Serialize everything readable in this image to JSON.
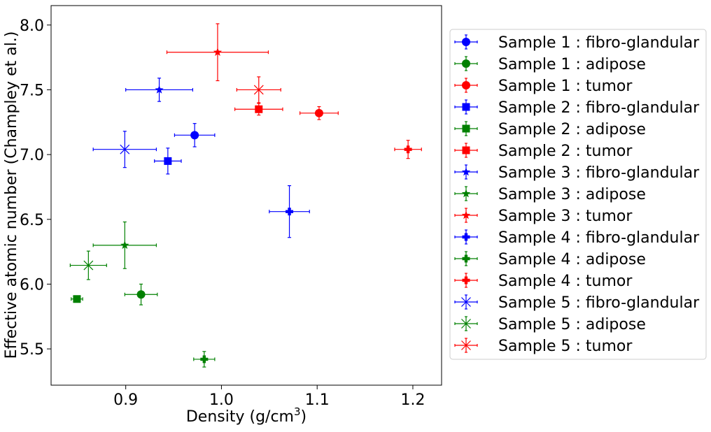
{
  "chart_data": {
    "type": "scatter",
    "xlabel": "Density (g/cm",
    "xlabel_sup": "3",
    "xlabel_end": ")",
    "ylabel": "Effective atomic number (Champley et al.)",
    "xlim": [
      0.822,
      1.23
    ],
    "ylim": [
      5.22,
      8.15
    ],
    "xticks": [
      0.9,
      1.0,
      1.1,
      1.2
    ],
    "xtick_labels": [
      "0.9",
      "1.0",
      "1.1",
      "1.2"
    ],
    "yticks": [
      5.5,
      6.0,
      6.5,
      7.0,
      7.5,
      8.0
    ],
    "ytick_labels": [
      "5.5",
      "6.0",
      "6.5",
      "7.0",
      "7.5",
      "8.0"
    ],
    "grid": false,
    "legend_position": "outside-right",
    "series": [
      {
        "name": "Sample 1 : fibro-glandular",
        "color": "#0000ff",
        "marker": "circle",
        "x": 0.972,
        "y": 7.15,
        "xerr": 0.021,
        "yerr": 0.09
      },
      {
        "name": "Sample 1 : adipose",
        "color": "#008000",
        "marker": "circle",
        "x": 0.916,
        "y": 5.92,
        "xerr": 0.017,
        "yerr": 0.08
      },
      {
        "name": "Sample 1 : tumor",
        "color": "#ff0000",
        "marker": "circle",
        "x": 1.102,
        "y": 7.32,
        "xerr": 0.02,
        "yerr": 0.05
      },
      {
        "name": "Sample 2 : fibro-glandular",
        "color": "#0000ff",
        "marker": "square",
        "x": 0.944,
        "y": 6.95,
        "xerr": 0.014,
        "yerr": 0.1
      },
      {
        "name": "Sample 2 : adipose",
        "color": "#008000",
        "marker": "square",
        "x": 0.849,
        "y": 5.885,
        "xerr": 0.006,
        "yerr": 0.025
      },
      {
        "name": "Sample 2 : tumor",
        "color": "#ff0000",
        "marker": "square",
        "x": 1.039,
        "y": 7.35,
        "xerr": 0.025,
        "yerr": 0.045
      },
      {
        "name": "Sample 3 : fibro-glandular",
        "color": "#0000ff",
        "marker": "star",
        "x": 0.935,
        "y": 7.5,
        "xerr": 0.035,
        "yerr": 0.09
      },
      {
        "name": "Sample 3 : adipose",
        "color": "#008000",
        "marker": "star",
        "x": 0.899,
        "y": 6.3,
        "xerr": 0.033,
        "yerr": 0.18
      },
      {
        "name": "Sample 3 : tumor",
        "color": "#ff0000",
        "marker": "star",
        "x": 0.996,
        "y": 7.79,
        "xerr": 0.053,
        "yerr": 0.22
      },
      {
        "name": "Sample 4 : fibro-glandular",
        "color": "#0000ff",
        "marker": "plus",
        "x": 1.071,
        "y": 6.56,
        "xerr": 0.021,
        "yerr": 0.2
      },
      {
        "name": "Sample 4 : adipose",
        "color": "#008000",
        "marker": "plus",
        "x": 0.982,
        "y": 5.42,
        "xerr": 0.011,
        "yerr": 0.06
      },
      {
        "name": "Sample 4 : tumor",
        "color": "#ff0000",
        "marker": "plus",
        "x": 1.195,
        "y": 7.04,
        "xerr": 0.014,
        "yerr": 0.07
      },
      {
        "name": "Sample 5 : fibro-glandular",
        "color": "#0000ff",
        "marker": "x",
        "x": 0.899,
        "y": 7.04,
        "xerr": 0.033,
        "yerr": 0.14
      },
      {
        "name": "Sample 5 : adipose",
        "color": "#008000",
        "marker": "x",
        "x": 0.861,
        "y": 6.145,
        "xerr": 0.019,
        "yerr": 0.11
      },
      {
        "name": "Sample 5 : tumor",
        "color": "#ff0000",
        "marker": "x",
        "x": 1.039,
        "y": 7.5,
        "xerr": 0.023,
        "yerr": 0.1
      }
    ]
  }
}
